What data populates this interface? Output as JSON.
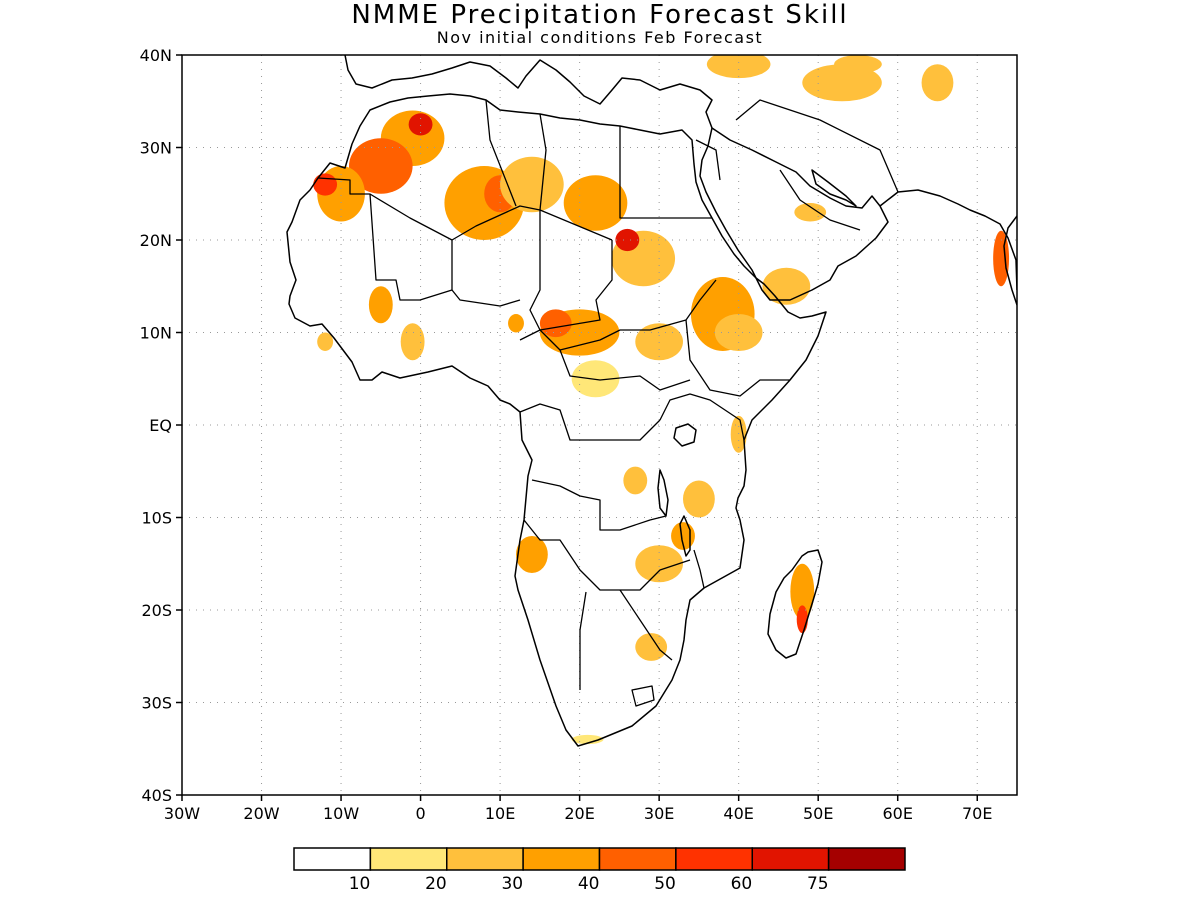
{
  "title": "NMME Precipitation Forecast Skill",
  "subtitle": "Nov initial conditions  Feb Forecast",
  "map": {
    "lon_range": [
      -30,
      75
    ],
    "lat_range": [
      -40,
      40
    ],
    "lat_ticks": [
      {
        "value": 40,
        "label": "40N"
      },
      {
        "value": 30,
        "label": "30N"
      },
      {
        "value": 20,
        "label": "20N"
      },
      {
        "value": 10,
        "label": "10N"
      },
      {
        "value": 0,
        "label": "EQ"
      },
      {
        "value": -10,
        "label": "10S"
      },
      {
        "value": -20,
        "label": "20S"
      },
      {
        "value": -30,
        "label": "30S"
      },
      {
        "value": -40,
        "label": "40S"
      }
    ],
    "lon_ticks": [
      {
        "value": -30,
        "label": "30W"
      },
      {
        "value": -20,
        "label": "20W"
      },
      {
        "value": -10,
        "label": "10W"
      },
      {
        "value": 0,
        "label": "0"
      },
      {
        "value": 10,
        "label": "10E"
      },
      {
        "value": 20,
        "label": "20E"
      },
      {
        "value": 30,
        "label": "30E"
      },
      {
        "value": 40,
        "label": "40E"
      },
      {
        "value": 50,
        "label": "50E"
      },
      {
        "value": 60,
        "label": "60E"
      },
      {
        "value": 70,
        "label": "70E"
      }
    ],
    "grid": "dotted",
    "shading_blobs": [
      {
        "lon": -1,
        "lat": 31,
        "rx": 4,
        "ry": 3,
        "level": 3
      },
      {
        "lon": 0,
        "lat": 32.5,
        "rx": 1.5,
        "ry": 1.2,
        "level": 6
      },
      {
        "lon": -5,
        "lat": 28,
        "rx": 4,
        "ry": 3,
        "level": 4
      },
      {
        "lon": -10,
        "lat": 25,
        "rx": 3,
        "ry": 3,
        "level": 3
      },
      {
        "lon": -12,
        "lat": 26,
        "rx": 1.5,
        "ry": 1.2,
        "level": 5
      },
      {
        "lon": 8,
        "lat": 24,
        "rx": 5,
        "ry": 4,
        "level": 3
      },
      {
        "lon": 10,
        "lat": 25,
        "rx": 2,
        "ry": 2,
        "level": 4
      },
      {
        "lon": 14,
        "lat": 26,
        "rx": 4,
        "ry": 3,
        "level": 2
      },
      {
        "lon": 22,
        "lat": 24,
        "rx": 4,
        "ry": 3,
        "level": 3
      },
      {
        "lon": 28,
        "lat": 18,
        "rx": 4,
        "ry": 3,
        "level": 2
      },
      {
        "lon": 26,
        "lat": 20,
        "rx": 1.5,
        "ry": 1.2,
        "level": 6
      },
      {
        "lon": 38,
        "lat": 12,
        "rx": 4,
        "ry": 4,
        "level": 3
      },
      {
        "lon": 40,
        "lat": 10,
        "rx": 3,
        "ry": 2,
        "level": 2
      },
      {
        "lon": 46,
        "lat": 15,
        "rx": 3,
        "ry": 2,
        "level": 2
      },
      {
        "lon": 20,
        "lat": 10,
        "rx": 5,
        "ry": 2.5,
        "level": 3
      },
      {
        "lon": 17,
        "lat": 11,
        "rx": 2,
        "ry": 1.5,
        "level": 4
      },
      {
        "lon": 30,
        "lat": 9,
        "rx": 3,
        "ry": 2,
        "level": 2
      },
      {
        "lon": 22,
        "lat": 5,
        "rx": 3,
        "ry": 2,
        "level": 1
      },
      {
        "lon": -5,
        "lat": 13,
        "rx": 1.5,
        "ry": 2,
        "level": 3
      },
      {
        "lon": -12,
        "lat": 9,
        "rx": 1,
        "ry": 1,
        "level": 2
      },
      {
        "lon": -1,
        "lat": 9,
        "rx": 1.5,
        "ry": 2,
        "level": 2
      },
      {
        "lon": 12,
        "lat": 11,
        "rx": 1,
        "ry": 1,
        "level": 3
      },
      {
        "lon": 14,
        "lat": -14,
        "rx": 2,
        "ry": 2,
        "level": 3
      },
      {
        "lon": 27,
        "lat": -6,
        "rx": 1.5,
        "ry": 1.5,
        "level": 2
      },
      {
        "lon": 35,
        "lat": -8,
        "rx": 2,
        "ry": 2,
        "level": 2
      },
      {
        "lon": 30,
        "lat": -15,
        "rx": 3,
        "ry": 2,
        "level": 2
      },
      {
        "lon": 33,
        "lat": -12,
        "rx": 1.5,
        "ry": 1.5,
        "level": 3
      },
      {
        "lon": 29,
        "lat": -24,
        "rx": 2,
        "ry": 1.5,
        "level": 2
      },
      {
        "lon": 40,
        "lat": -1,
        "rx": 1,
        "ry": 2,
        "level": 2
      },
      {
        "lon": 48,
        "lat": -18,
        "rx": 1.5,
        "ry": 3,
        "level": 3
      },
      {
        "lon": 48,
        "lat": -21,
        "rx": 0.7,
        "ry": 1.5,
        "level": 5
      },
      {
        "lon": 53,
        "lat": 37,
        "rx": 5,
        "ry": 2,
        "level": 2
      },
      {
        "lon": 55,
        "lat": 39,
        "rx": 3,
        "ry": 1,
        "level": 2
      },
      {
        "lon": 40,
        "lat": 39,
        "rx": 4,
        "ry": 1.5,
        "level": 2
      },
      {
        "lon": 65,
        "lat": 37,
        "rx": 2,
        "ry": 2,
        "level": 2
      },
      {
        "lon": 73,
        "lat": 18,
        "rx": 1,
        "ry": 3,
        "level": 4
      },
      {
        "lon": 49,
        "lat": 23,
        "rx": 2,
        "ry": 1,
        "level": 2
      },
      {
        "lon": 21,
        "lat": -34,
        "rx": 2,
        "ry": 0.5,
        "level": 1
      }
    ]
  },
  "colorbar": {
    "colors": [
      "#ffffff",
      "#ffe778",
      "#ffc03c",
      "#ffa000",
      "#ff6000",
      "#ff3200",
      "#e11400",
      "#a50000"
    ],
    "labels": [
      "10",
      "20",
      "30",
      "40",
      "50",
      "60",
      "75"
    ]
  }
}
